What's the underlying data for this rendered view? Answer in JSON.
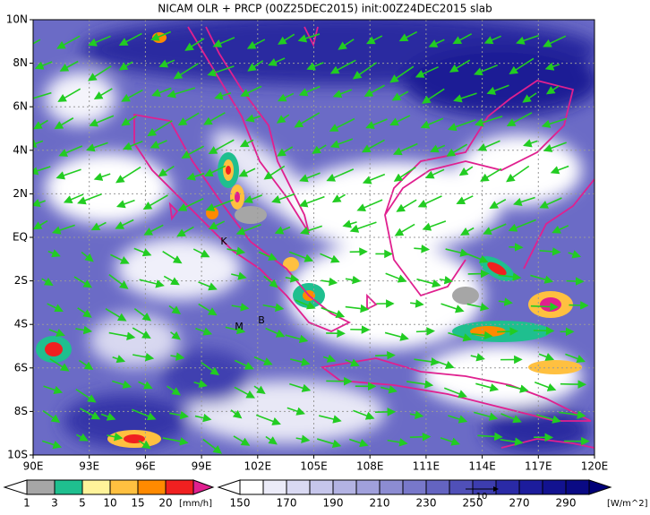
{
  "title": "NICAM OLR + PRCP (00Z25DEC2015) init:00Z24DEC2015 slab",
  "lat_labels": [
    "10N",
    "8N",
    "6N",
    "4N",
    "2N",
    "EQ",
    "2S",
    "4S",
    "6S",
    "8S",
    "10S"
  ],
  "lon_labels": [
    "90E",
    "93E",
    "96E",
    "99E",
    "102E",
    "105E",
    "108E",
    "111E",
    "114E",
    "117E",
    "120E"
  ],
  "places": [
    "K",
    "M",
    "B"
  ],
  "precip_colorbar": {
    "labels": [
      "1",
      "3",
      "5",
      "10",
      "15",
      "20"
    ],
    "unit": "[mm/h]",
    "colors": [
      "#a6a6a6",
      "#1fbf8f",
      "#fff39a",
      "#ffc040",
      "#ff8a00",
      "#f02020",
      "#e0208f"
    ]
  },
  "olr_colorbar": {
    "labels": [
      "150",
      "170",
      "190",
      "210",
      "230",
      "250",
      "270",
      "290"
    ],
    "unit": "[W/m^2]",
    "colors": [
      "#ffffff",
      "#ebebf8",
      "#d9d9f2",
      "#c6c6eb",
      "#b3b3e3",
      "#a0a0db",
      "#8c8cd2",
      "#7878ca",
      "#6464c1",
      "#5050b8",
      "#3d3daf",
      "#2a2aa6",
      "#1c1c9c",
      "#121290",
      "#0a0a84",
      "#000078"
    ]
  },
  "vector_key": "10"
}
